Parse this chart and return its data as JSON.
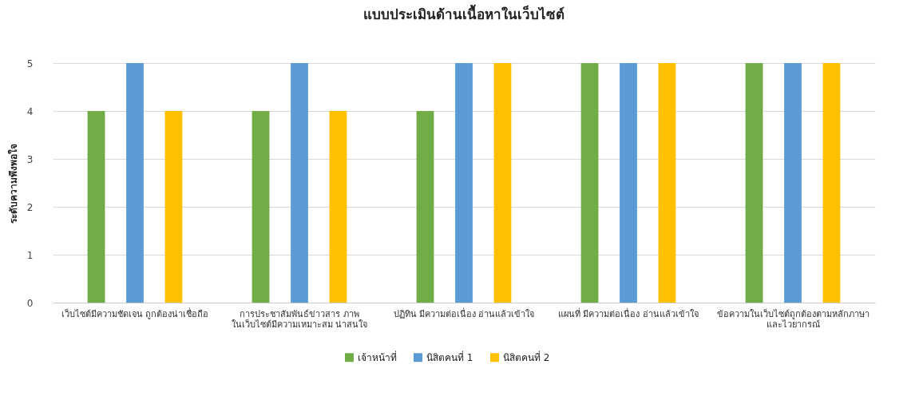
{
  "chart_data": {
    "type": "bar",
    "title": "แบบประเมินด้านเนื้อหาในเว็บไซต์",
    "ylabel": "ระดับความพึงพอใจ",
    "categories": [
      "เว็บไซต์มีความชัดเจน ถูกต้องน่าเชื่อถือ",
      "การประชาสัมพันธ์ข่าวสาร ภาพ ในเว็บไซต์มีความเหมาะสม น่าสนใจ",
      "ปฏิทิน มีความต่อเนื่อง อ่านแล้วเข้าใจ",
      "แผนที่ มีความต่อเนื่อง อ่านแล้วเข้าใจ",
      "ข้อความในเว็บไซต์ถูกต้องตามหลักภาษาและไวยากรณ์"
    ],
    "series": [
      {
        "name": "เจ้าหน้าที่",
        "color": "#70ad47",
        "values": [
          4,
          4,
          4,
          5,
          5
        ]
      },
      {
        "name": "นิสิตคนที่ 1",
        "color": "#5b9bd5",
        "values": [
          5,
          5,
          5,
          5,
          5
        ]
      },
      {
        "name": "นิสิตคนที่ 2",
        "color": "#ffc000",
        "values": [
          4,
          4,
          5,
          5,
          5
        ]
      }
    ],
    "ylim": [
      0,
      5
    ],
    "yticks": [
      0,
      1,
      2,
      3,
      4,
      5
    ],
    "grid": "y",
    "legend": "bottom"
  }
}
